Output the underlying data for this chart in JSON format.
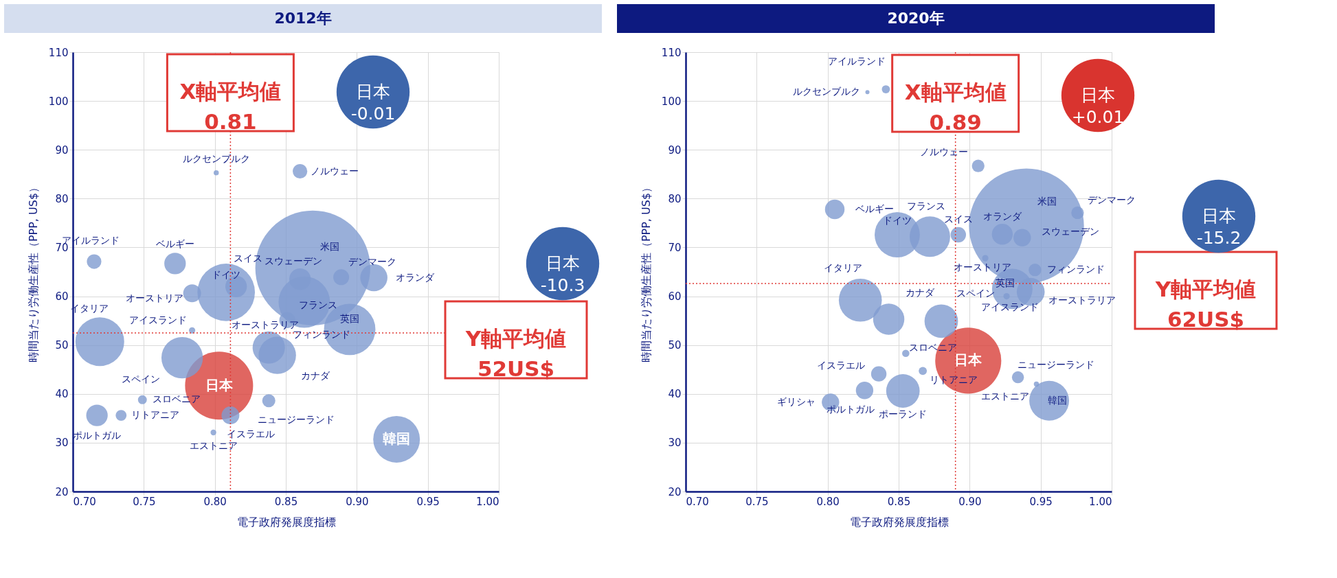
{
  "chart_data": [
    {
      "type": "bubble",
      "title": "2012年",
      "xlabel": "電子政府発展度指標",
      "ylabel": "時間当たり労働生産性（PPP, US$）",
      "xlim": [
        0.7,
        1.0
      ],
      "ylim": [
        20,
        110
      ],
      "xticks": [
        {
          "value": 0.7,
          "label": "0.70"
        },
        0.75,
        {
          "value": 0.8,
          "label": "0.80"
        },
        0.85,
        {
          "value": 0.9,
          "label": "0.90"
        },
        0.95,
        {
          "value": 1.0,
          "label": "1.00"
        }
      ],
      "yticks": [
        20,
        30,
        40,
        50,
        60,
        70,
        80,
        90,
        100,
        110
      ],
      "grid": true,
      "legend": false,
      "x": [
        0.715,
        0.772,
        0.784,
        0.808,
        0.815,
        0.801,
        0.86,
        0.869,
        0.86,
        0.863,
        0.889,
        0.912,
        0.895,
        0.851,
        0.844,
        0.838,
        0.719,
        0.784,
        0.777,
        0.803,
        0.749,
        0.734,
        0.717,
        0.799,
        0.811,
        0.838,
        0.928
      ],
      "values": [
        67.1,
        66.7,
        60.6,
        60.8,
        62.0,
        85.3,
        85.6,
        65.8,
        63.5,
        58.8,
        63.9,
        63.8,
        53.2,
        55.1,
        47.9,
        49.5,
        50.7,
        53.0,
        47.4,
        41.7,
        38.8,
        35.6,
        35.6,
        32.1,
        35.6,
        38.6,
        30.7
      ],
      "sizes": [
        0.016,
        0.035,
        0.024,
        0.25,
        0.035,
        0.002,
        0.016,
        1,
        0.035,
        0.2,
        0.019,
        0.056,
        0.2,
        0.019,
        0.106,
        0.079,
        0.18,
        0.003,
        0.13,
        0.35,
        0.006,
        0.009,
        0.035,
        0.0025,
        0.024,
        0.013,
        0.165
      ],
      "colors": [
        "#7f9bd0",
        "#7f9bd0",
        "#7f9bd0",
        "#7f9bd0",
        "#7f9bd0",
        "#7f9bd0",
        "#7f9bd0",
        "#7f9bd0",
        "#7f9bd0",
        "#7f9bd0",
        "#7f9bd0",
        "#7f9bd0",
        "#7f9bd0",
        "#7f9bd0",
        "#7f9bd0",
        "#7f9bd0",
        "#7f9bd0",
        "#7f9bd0",
        "#7f9bd0",
        "#d8403a",
        "#7f9bd0",
        "#7f9bd0",
        "#7f9bd0",
        "#7f9bd0",
        "#7f9bd0",
        "#7f9bd0",
        "#7f9bd0"
      ],
      "annotations": [
        {
          "text": "アイルランド",
          "x": 0.715,
          "y": 67.1
        },
        {
          "text": "ベルギー",
          "x": 0.772,
          "y": 66.7
        },
        {
          "text": "オーストリア",
          "x": 0.784,
          "y": 60.6
        },
        {
          "text": "ドイツ",
          "x": 0.808,
          "y": 60.8
        },
        {
          "text": "スイス",
          "x": 0.815,
          "y": 62.0
        },
        {
          "text": "ルクセンブルク",
          "x": 0.801,
          "y": 85.3
        },
        {
          "text": "ノルウェー",
          "x": 0.86,
          "y": 85.6
        },
        {
          "text": "米国",
          "x": 0.869,
          "y": 65.8
        },
        {
          "text": "スウェーデン",
          "x": 0.86,
          "y": 63.5
        },
        {
          "text": "フランス",
          "x": 0.863,
          "y": 58.8
        },
        {
          "text": "デンマーク",
          "x": 0.889,
          "y": 63.9
        },
        {
          "text": "オランダ",
          "x": 0.912,
          "y": 63.8
        },
        {
          "text": "英国",
          "x": 0.895,
          "y": 53.2
        },
        {
          "text": "フィンランド",
          "x": 0.851,
          "y": 55.1
        },
        {
          "text": "カナダ",
          "x": 0.844,
          "y": 47.9
        },
        {
          "text": "オーストラリア",
          "x": 0.838,
          "y": 49.5
        },
        {
          "text": "イタリア",
          "x": 0.719,
          "y": 50.7
        },
        {
          "text": "アイスランド",
          "x": 0.784,
          "y": 53.0
        },
        {
          "text": "スペイン",
          "x": 0.777,
          "y": 47.4
        },
        {
          "text": "日本",
          "x": 0.803,
          "y": 41.7
        },
        {
          "text": "スロベニア",
          "x": 0.749,
          "y": 38.8
        },
        {
          "text": "リトアニア",
          "x": 0.734,
          "y": 35.6
        },
        {
          "text": "ポルトガル",
          "x": 0.717,
          "y": 35.6
        },
        {
          "text": "エストニア",
          "x": 0.799,
          "y": 32.1
        },
        {
          "text": "イスラエル",
          "x": 0.811,
          "y": 35.6
        },
        {
          "text": "ニュージーランド",
          "x": 0.838,
          "y": 38.6
        },
        {
          "text": "韓国",
          "x": 0.928,
          "y": 30.7
        },
        "日本 -0.01",
        "日本 -10.3"
      ],
      "ref_lines": [
        {
          "axis": "x",
          "value": 0.811,
          "label": "X軸平均値 0.81",
          "color": "#e03a36",
          "line_style": "dotted"
        },
        {
          "axis": "y",
          "value": 52.5,
          "label": "Y軸平均値 52US$",
          "color": "#e03a36",
          "line_style": "dotted"
        }
      ]
    },
    {
      "type": "bubble",
      "title": "2020年",
      "xlabel": "電子政府発展度指標",
      "ylabel": "時間当たり労働生産性（PPP, US$）",
      "xlim": [
        0.7,
        1.0
      ],
      "ylim": [
        20,
        110
      ],
      "xticks": [
        {
          "value": 0.7,
          "label": "0.70"
        },
        0.75,
        {
          "value": 0.8,
          "label": "0.80"
        },
        0.85,
        {
          "value": 0.9,
          "label": "0.90"
        },
        0.95,
        {
          "value": 1.0,
          "label": "1.00"
        }
      ],
      "yticks": [
        20,
        30,
        40,
        50,
        60,
        70,
        80,
        90,
        100,
        110
      ],
      "grid": true,
      "legend": false,
      "x": [
        0.828,
        0.841,
        0.906,
        0.923,
        0.94,
        0.976,
        0.937,
        0.805,
        0.849,
        0.872,
        0.892,
        0.911,
        0.946,
        0.943,
        0.93,
        0.926,
        0.823,
        0.843,
        0.88,
        0.855,
        0.899,
        0.836,
        0.867,
        0.826,
        0.853,
        0.802,
        0.934,
        0.947,
        0.956
      ],
      "values": [
        101.8,
        102.4,
        86.7,
        72.7,
        74.4,
        77.1,
        72.0,
        77.8,
        72.6,
        72.2,
        72.6,
        67.8,
        65.4,
        60.9,
        61.5,
        60.0,
        59.2,
        55.3,
        54.9,
        48.3,
        46.8,
        44.1,
        44.7,
        40.7,
        40.6,
        38.3,
        43.4,
        42.0,
        38.6
      ],
      "sizes": [
        0.0013,
        0.005,
        0.012,
        0.033,
        1,
        0.012,
        0.023,
        0.029,
        0.155,
        0.124,
        0.018,
        0.003,
        0.012,
        0.059,
        0.124,
        0.003,
        0.14,
        0.074,
        0.085,
        0.004,
        0.33,
        0.018,
        0.005,
        0.023,
        0.085,
        0.023,
        0.011,
        0.002,
        0.12
      ],
      "colors": [
        "#7f9bd0",
        "#7f9bd0",
        "#7f9bd0",
        "#7f9bd0",
        "#7f9bd0",
        "#7f9bd0",
        "#7f9bd0",
        "#7f9bd0",
        "#7f9bd0",
        "#7f9bd0",
        "#7f9bd0",
        "#7f9bd0",
        "#7f9bd0",
        "#7f9bd0",
        "#7f9bd0",
        "#7f9bd0",
        "#7f9bd0",
        "#7f9bd0",
        "#7f9bd0",
        "#7f9bd0",
        "#d8403a",
        "#7f9bd0",
        "#7f9bd0",
        "#7f9bd0",
        "#7f9bd0",
        "#7f9bd0",
        "#7f9bd0",
        "#7f9bd0",
        "#7f9bd0"
      ],
      "annotations": [
        {
          "text": "ルクセンブルク",
          "x": 0.828,
          "y": 101.8
        },
        {
          "text": "アイルランド",
          "x": 0.841,
          "y": 102.4
        },
        {
          "text": "ノルウェー",
          "x": 0.906,
          "y": 86.7
        },
        {
          "text": "オランダ",
          "x": 0.923,
          "y": 72.7
        },
        {
          "text": "米国",
          "x": 0.94,
          "y": 74.4
        },
        {
          "text": "デンマーク",
          "x": 0.976,
          "y": 77.1
        },
        {
          "text": "スウェーデン",
          "x": 0.937,
          "y": 72.0
        },
        {
          "text": "ベルギー",
          "x": 0.805,
          "y": 77.8
        },
        {
          "text": "ドイツ",
          "x": 0.849,
          "y": 72.6
        },
        {
          "text": "フランス",
          "x": 0.872,
          "y": 72.2
        },
        {
          "text": "スイス",
          "x": 0.892,
          "y": 72.6
        },
        {
          "text": "オーストリア",
          "x": 0.911,
          "y": 67.8
        },
        {
          "text": "フィンランド",
          "x": 0.946,
          "y": 65.4
        },
        {
          "text": "オーストラリア",
          "x": 0.943,
          "y": 60.9
        },
        {
          "text": "英国",
          "x": 0.93,
          "y": 61.5
        },
        {
          "text": "アイスランド",
          "x": 0.926,
          "y": 60.0
        },
        {
          "text": "イタリア",
          "x": 0.823,
          "y": 59.2
        },
        {
          "text": "カナダ",
          "x": 0.843,
          "y": 55.3
        },
        {
          "text": "スペイン",
          "x": 0.88,
          "y": 54.9
        },
        {
          "text": "スロベニア",
          "x": 0.855,
          "y": 48.3
        },
        {
          "text": "日本",
          "x": 0.899,
          "y": 46.8
        },
        {
          "text": "イスラエル",
          "x": 0.836,
          "y": 44.1
        },
        {
          "text": "リトアニア",
          "x": 0.867,
          "y": 44.7
        },
        {
          "text": "ポルトガル",
          "x": 0.826,
          "y": 40.7
        },
        {
          "text": "ポーランド",
          "x": 0.853,
          "y": 40.6
        },
        {
          "text": "ギリシャ",
          "x": 0.802,
          "y": 38.3
        },
        {
          "text": "ニュージーランド",
          "x": 0.934,
          "y": 43.4
        },
        {
          "text": "エストニア",
          "x": 0.947,
          "y": 42.0
        },
        {
          "text": "韓国",
          "x": 0.956,
          "y": 38.6
        },
        "日本 +0.01",
        "日本 -15.2"
      ],
      "ref_lines": [
        {
          "axis": "x",
          "value": 0.89,
          "label": "X軸平均値 0.89",
          "color": "#e03a36",
          "line_style": "dotted"
        },
        {
          "axis": "y",
          "value": 62.6,
          "label": "Y軸平均値 62US$",
          "color": "#e03a36",
          "line_style": "dotted"
        }
      ]
    }
  ]
}
